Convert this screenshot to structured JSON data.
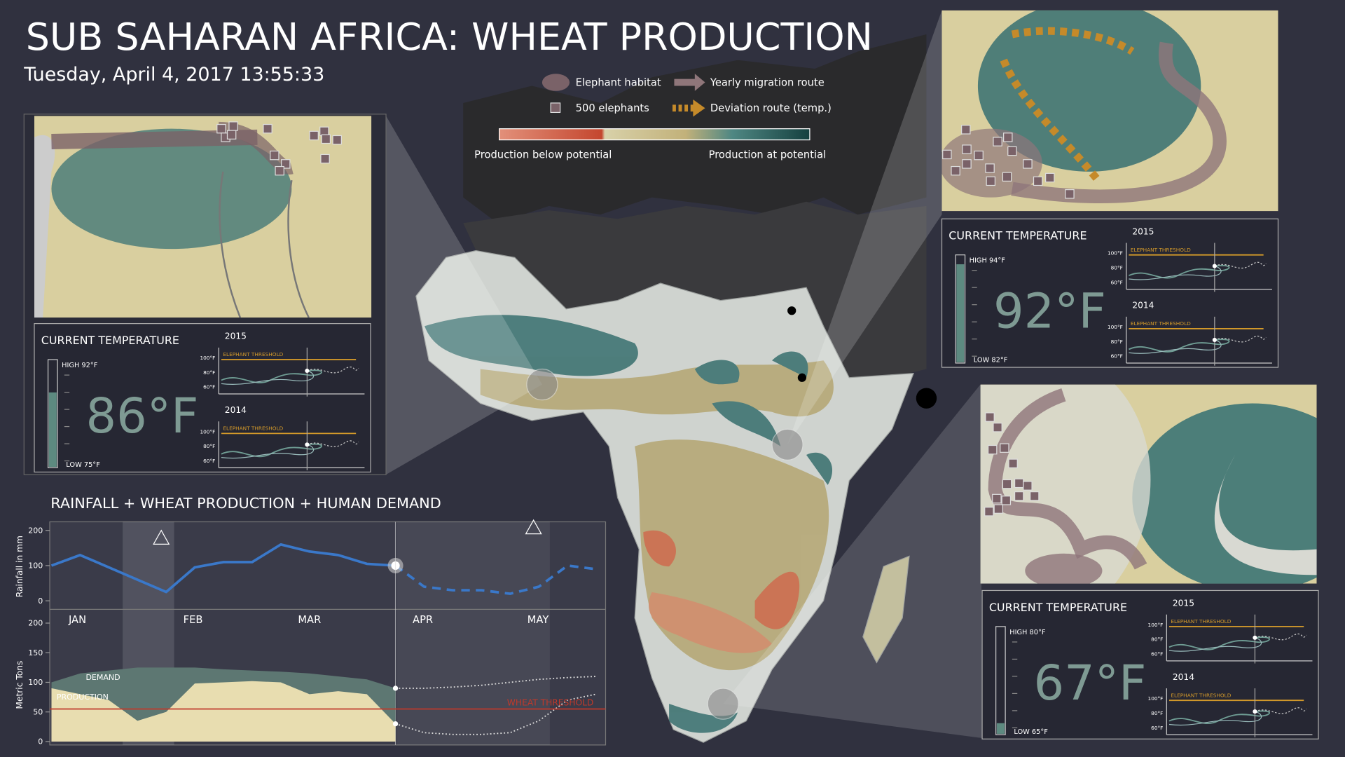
{
  "header": {
    "title": "SUB SAHARAN AFRICA: WHEAT PRODUCTION",
    "datetime": "Tuesday, April 4, 2017 13:55:33"
  },
  "legend": {
    "habitat": "Elephant habitat",
    "elephants": "500 elephants",
    "migration": "Yearly migration route",
    "deviation": "Deviation route (temp.)",
    "below": "Production below potential",
    "at": "Production at potential"
  },
  "panels": [
    {
      "heading": "CURRENT TEMPERATURE",
      "temperature": "86°F",
      "high": "HIGH 92°F",
      "low": "LOW 75°F",
      "years": [
        "2015",
        "2014"
      ],
      "threshold": "ELEPHANT THRESHOLD",
      "ticks": [
        "100°F",
        "80°F",
        "60°F"
      ]
    },
    {
      "heading": "CURRENT TEMPERATURE",
      "temperature": "92°F",
      "high": "HIGH 94°F",
      "low": "LOW 82°F",
      "years": [
        "2015",
        "2014"
      ],
      "threshold": "ELEPHANT THRESHOLD",
      "ticks": [
        "100°F",
        "80°F",
        "60°F"
      ]
    },
    {
      "heading": "CURRENT TEMPERATURE",
      "temperature": "67°F",
      "high": "HIGH 80°F",
      "low": "LOW 65°F",
      "years": [
        "2015",
        "2014"
      ],
      "threshold": "ELEPHANT THRESHOLD",
      "ticks": [
        "100°F",
        "80°F",
        "60°F"
      ]
    }
  ],
  "chart_data": [
    {
      "type": "line",
      "title": "RAINFALL + WHEAT PRODUCTION + HUMAN DEMAND",
      "ylabel": "Rainfall in mm",
      "categories": [
        "JAN",
        null,
        null,
        null,
        "FEB",
        null,
        null,
        null,
        "MAR",
        null,
        null,
        null,
        "APR",
        null,
        null,
        null,
        "MAY",
        null,
        null,
        null
      ],
      "ylim": [
        0,
        200
      ],
      "yticks": [
        0,
        100,
        200
      ],
      "series": [
        {
          "color": "#3a78c9",
          "values": [
            100,
            130,
            95,
            60,
            25,
            95,
            110,
            110,
            160,
            140,
            130,
            105,
            100,
            null,
            null,
            null,
            null,
            null,
            null,
            null
          ],
          "forecast": [
            null,
            null,
            null,
            null,
            null,
            null,
            null,
            null,
            null,
            null,
            null,
            null,
            100,
            40,
            30,
            30,
            20,
            40,
            100,
            90
          ]
        }
      ]
    },
    {
      "type": "area",
      "ylabel": "Metric Tons",
      "ylim": [
        0,
        200
      ],
      "yticks": [
        0,
        50,
        100,
        150,
        200
      ],
      "series": [
        {
          "name": "DEMAND",
          "color": "#5d7772",
          "values": [
            100,
            115,
            120,
            125,
            125,
            125,
            122,
            120,
            118,
            115,
            110,
            105,
            90,
            null,
            null,
            null,
            null,
            null,
            null,
            null
          ],
          "forecast": [
            null,
            null,
            null,
            null,
            null,
            null,
            null,
            null,
            null,
            null,
            null,
            null,
            90,
            90,
            92,
            95,
            100,
            105,
            108,
            110
          ]
        },
        {
          "name": "PRODUCTION",
          "color": "#e8ddb0",
          "values": [
            90,
            80,
            70,
            35,
            50,
            98,
            100,
            102,
            100,
            80,
            85,
            80,
            30,
            null,
            null,
            null,
            null,
            null,
            null,
            null
          ],
          "forecast": [
            null,
            null,
            null,
            null,
            null,
            null,
            null,
            null,
            null,
            null,
            null,
            null,
            30,
            15,
            12,
            12,
            15,
            35,
            70,
            80
          ]
        }
      ],
      "threshold": {
        "label": "WHEAT THRESHOLD",
        "value": 55,
        "color": "#c0392b"
      }
    }
  ]
}
